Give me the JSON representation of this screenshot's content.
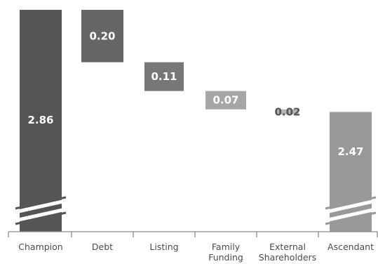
{
  "chart_data": {
    "type": "waterfall",
    "categories": [
      "Champion",
      "Debt",
      "Listing",
      "Family\nFunding",
      "External\nShareholders",
      "Ascendant"
    ],
    "values": [
      2.86,
      -0.2,
      -0.11,
      -0.07,
      -0.02,
      2.47
    ],
    "labels": [
      "2.86",
      "0.20",
      "0.11",
      "0.07",
      "0.02",
      "2.47"
    ],
    "total_indices": [
      0,
      5
    ],
    "axis_break": true,
    "title": "",
    "xlabel": "",
    "ylabel": "",
    "colors": [
      "#555555",
      "#666666",
      "#777777",
      "#a6a6a6",
      "#b4b4b4",
      "#999999"
    ]
  }
}
